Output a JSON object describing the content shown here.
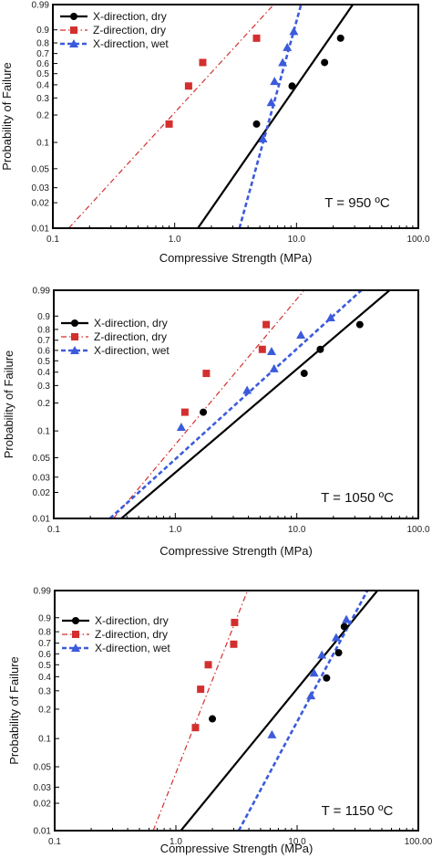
{
  "chart_data": [
    {
      "type": "scatter",
      "xscale": "log",
      "yscale": "weibull",
      "xlim": [
        0.1,
        100.0
      ],
      "ylim": [
        0.01,
        0.99
      ],
      "xticks": [
        "0.1",
        "1.0",
        "10.0",
        "100.0"
      ],
      "yticks": [
        "0.01",
        "0.02",
        "0.03",
        "0.05",
        "0.1",
        "0.2",
        "0.3",
        "0.4",
        "0.5",
        "0.6",
        "0.7",
        "0.8",
        "0.9",
        "0.99"
      ],
      "xlabel": "Compressive Strength (MPa)",
      "ylabel": "Probability of Failure",
      "annotation": "T = 950 ºC",
      "legend_position": "top-left",
      "series": [
        {
          "name": "X-direction, dry",
          "marker": "circle",
          "color": "#000000",
          "line": "solid",
          "points": [
            [
              4.7,
              0.16
            ],
            [
              9.2,
              0.39
            ],
            [
              17.0,
              0.61
            ],
            [
              23.0,
              0.84
            ]
          ],
          "fit": [
            [
              1.55,
              0.01
            ],
            [
              29.0,
              0.99
            ]
          ]
        },
        {
          "name": "Z-direction, dry",
          "marker": "square",
          "color": "#d32f2f",
          "line": "dashdot",
          "points": [
            [
              0.9,
              0.16
            ],
            [
              1.3,
              0.39
            ],
            [
              1.7,
              0.61
            ],
            [
              4.7,
              0.84
            ]
          ],
          "fit": [
            [
              0.135,
              0.01
            ],
            [
              6.5,
              0.99
            ]
          ]
        },
        {
          "name": "X-direction, wet",
          "marker": "triangle",
          "color": "#3b5bdb",
          "line": "dashed",
          "points": [
            [
              5.3,
              0.11
            ],
            [
              6.2,
              0.27
            ],
            [
              6.6,
              0.43
            ],
            [
              7.7,
              0.61
            ],
            [
              8.4,
              0.76
            ],
            [
              9.5,
              0.89
            ]
          ],
          "fit": [
            [
              3.4,
              0.01
            ],
            [
              10.9,
              0.99
            ]
          ]
        }
      ]
    },
    {
      "type": "scatter",
      "xscale": "log",
      "yscale": "weibull",
      "xlim": [
        0.1,
        100.0
      ],
      "ylim": [
        0.01,
        0.99
      ],
      "xticks": [
        "0.1",
        "1.0",
        "10.0",
        "100.0"
      ],
      "yticks": [
        "0.01",
        "0.02",
        "0.03",
        "0.05",
        "0.1",
        "0.2",
        "0.3",
        "0.4",
        "0.5",
        "0.6",
        "0.7",
        "0.8",
        "0.9",
        "0.99"
      ],
      "xlabel": "Compressive Strength (MPa)",
      "ylabel": "Probability of Failure",
      "annotation": "T = 1050 ºC",
      "legend_position": "top-left",
      "series": [
        {
          "name": "X-direction, dry",
          "marker": "circle",
          "color": "#000000",
          "line": "solid",
          "points": [
            [
              1.7,
              0.16
            ],
            [
              11.5,
              0.39
            ],
            [
              15.6,
              0.61
            ],
            [
              33.0,
              0.84
            ]
          ],
          "fit": [
            [
              0.36,
              0.01
            ],
            [
              58.0,
              0.99
            ]
          ]
        },
        {
          "name": "Z-direction, dry",
          "marker": "square",
          "color": "#d32f2f",
          "line": "dashdot",
          "points": [
            [
              1.2,
              0.16
            ],
            [
              1.8,
              0.39
            ],
            [
              5.2,
              0.61
            ],
            [
              5.6,
              0.84
            ]
          ],
          "fit": [
            [
              0.31,
              0.01
            ],
            [
              11.5,
              0.99
            ]
          ]
        },
        {
          "name": "X-direction, wet",
          "marker": "triangle",
          "color": "#3b5bdb",
          "line": "dashed",
          "points": [
            [
              1.12,
              0.11
            ],
            [
              3.9,
              0.27
            ],
            [
              6.5,
              0.43
            ],
            [
              6.2,
              0.59
            ],
            [
              10.8,
              0.75
            ],
            [
              19.0,
              0.89
            ]
          ],
          "fit": [
            [
              0.29,
              0.01
            ],
            [
              34.0,
              0.99
            ]
          ]
        }
      ]
    },
    {
      "type": "scatter",
      "xscale": "log",
      "yscale": "weibull",
      "xlim": [
        0.1,
        100.0
      ],
      "ylim": [
        0.01,
        0.99
      ],
      "xticks": [
        "0.1",
        "1.0",
        "10.0",
        "100.00"
      ],
      "yticks": [
        "0.01",
        "0.02",
        "0.03",
        "0.05",
        "0.1",
        "0.2",
        "0.3",
        "0.4",
        "0.5",
        "0.6",
        "0.7",
        "0.8",
        "0.9",
        "0.99"
      ],
      "xlabel": "Compressive Strength (MPa)",
      "ylabel": "Probability of Failure",
      "annotation": "T = 1150 ºC",
      "legend_position": "top-left",
      "series": [
        {
          "name": "X-direction, dry",
          "marker": "circle",
          "color": "#000000",
          "line": "solid",
          "points": [
            [
              2.0,
              0.16
            ],
            [
              17.5,
              0.39
            ],
            [
              22.0,
              0.61
            ],
            [
              24.5,
              0.84
            ]
          ],
          "fit": [
            [
              1.1,
              0.01
            ],
            [
              46.0,
              0.99
            ]
          ]
        },
        {
          "name": "Z-direction, dry",
          "marker": "square",
          "color": "#d32f2f",
          "line": "dashdot",
          "points": [
            [
              1.45,
              0.13
            ],
            [
              1.6,
              0.31
            ],
            [
              1.85,
              0.5
            ],
            [
              3.0,
              0.69
            ],
            [
              3.05,
              0.87
            ]
          ],
          "fit": [
            [
              0.65,
              0.01
            ],
            [
              3.9,
              0.99
            ]
          ]
        },
        {
          "name": "X-direction, wet",
          "marker": "triangle",
          "color": "#3b5bdb",
          "line": "dashed",
          "points": [
            [
              6.2,
              0.11
            ],
            [
              13.0,
              0.27
            ],
            [
              13.8,
              0.43
            ],
            [
              16.0,
              0.59
            ],
            [
              21.0,
              0.75
            ],
            [
              25.5,
              0.89
            ]
          ],
          "fit": [
            [
              3.3,
              0.01
            ],
            [
              38.0,
              0.99
            ]
          ]
        }
      ]
    }
  ]
}
